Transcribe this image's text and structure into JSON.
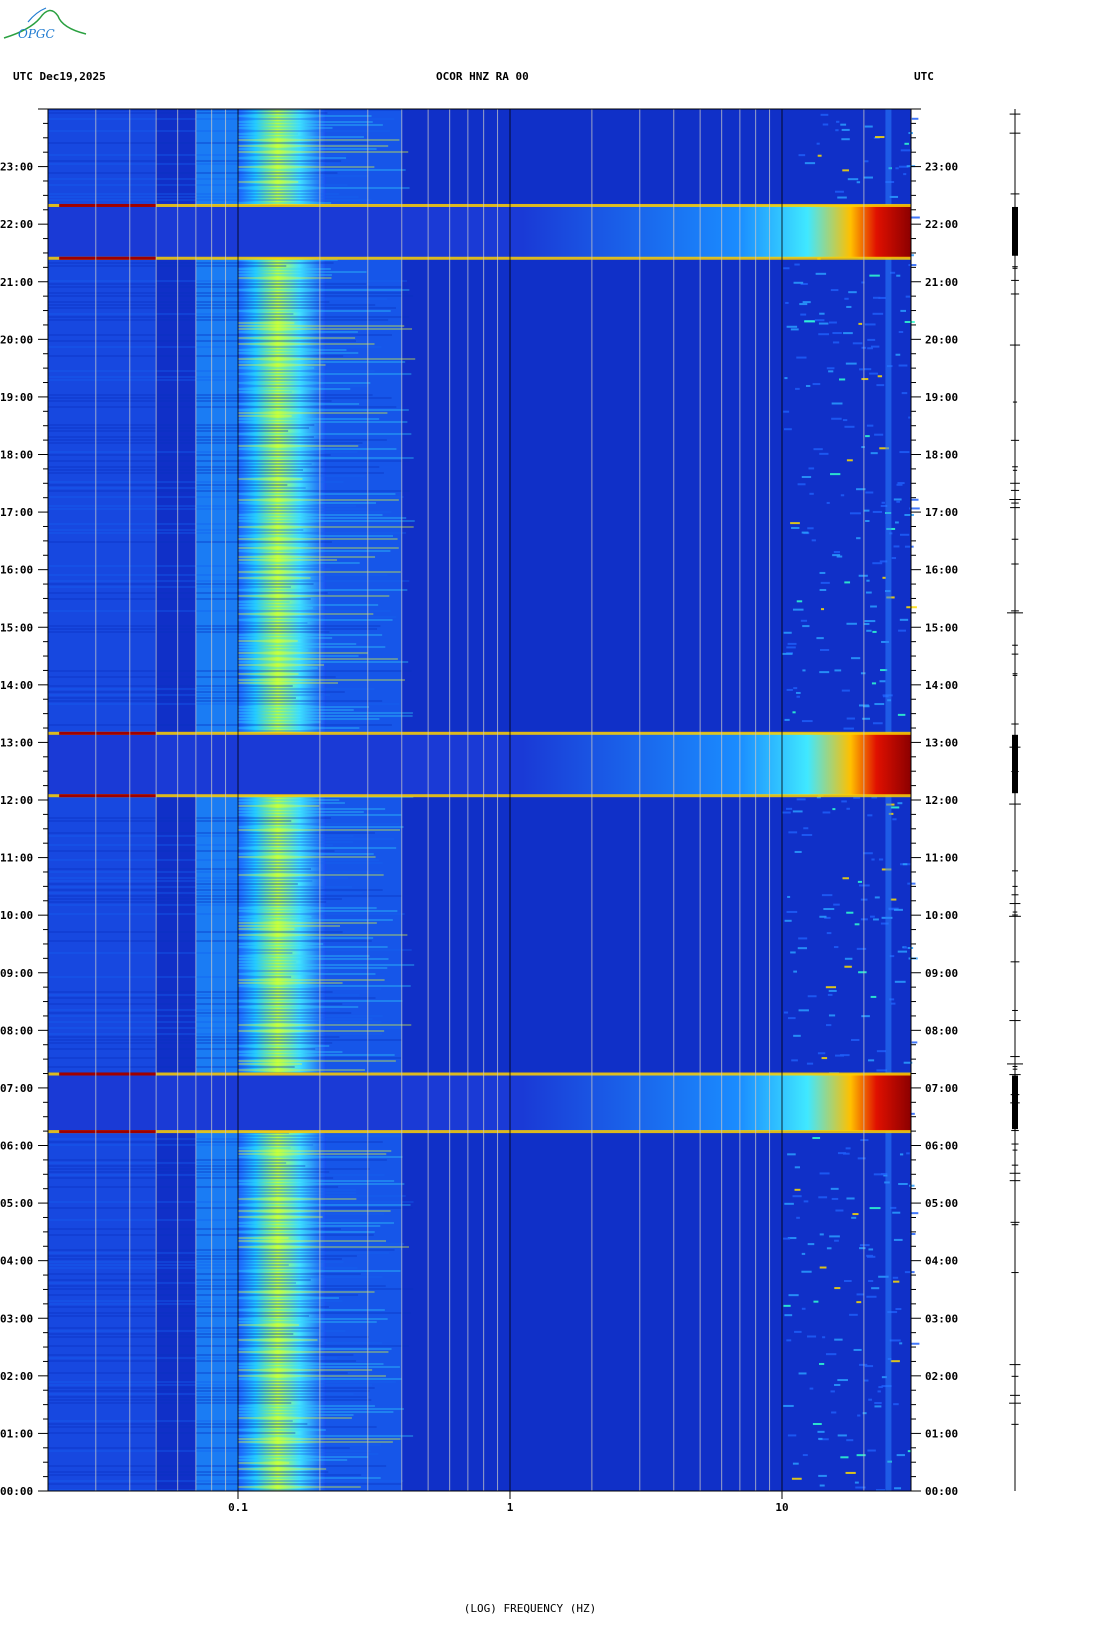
{
  "header": {
    "logo_text": "OPGC",
    "left_label": "UTC  Dec19,2025",
    "center_label": "OCOR HNZ RA 00",
    "right_label": "UTC"
  },
  "chart_data": {
    "type": "heatmap",
    "title": "OCOR HNZ RA 00",
    "date": "Dec19,2025",
    "timezone": "UTC",
    "xlabel": "(LOG) FREQUENCY (HZ)",
    "x_scale": "log",
    "xlim": [
      0.02,
      30
    ],
    "x_ticks": [
      {
        "value": 0.1,
        "label": "0.1"
      },
      {
        "value": 1,
        "label": "1"
      },
      {
        "value": 10,
        "label": "10"
      }
    ],
    "ylim_hours": [
      0,
      24
    ],
    "y_tick_labels": [
      "00:00",
      "01:00",
      "02:00",
      "03:00",
      "04:00",
      "05:00",
      "06:00",
      "07:00",
      "08:00",
      "09:00",
      "10:00",
      "11:00",
      "12:00",
      "13:00",
      "14:00",
      "15:00",
      "16:00",
      "17:00",
      "18:00",
      "19:00",
      "20:00",
      "21:00",
      "22:00",
      "23:00"
    ],
    "colormap": [
      "#00008b",
      "#0033cc",
      "#0080ff",
      "#00e0ff",
      "#b0ff50",
      "#ffff00",
      "#ff8000",
      "#ff0000",
      "#8b0000"
    ],
    "background_color": "#1030c8",
    "high_energy_bands": [
      {
        "start": "06:15",
        "end": "07:15"
      },
      {
        "start": "12:05",
        "end": "13:10"
      },
      {
        "start": "21:25",
        "end": "22:20"
      }
    ],
    "microseism_band_hz": [
      0.1,
      0.15
    ]
  }
}
